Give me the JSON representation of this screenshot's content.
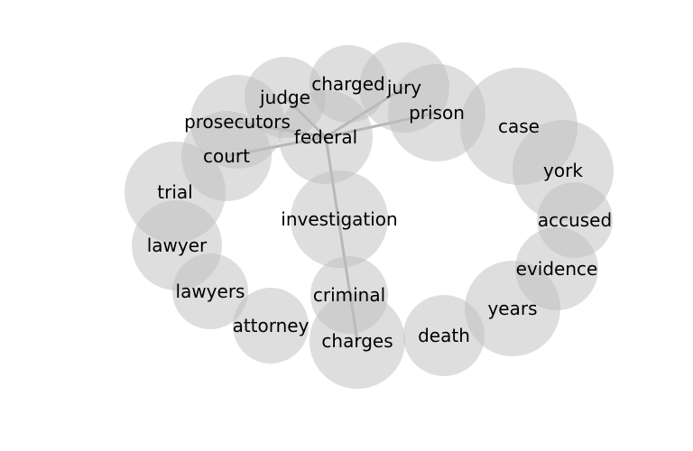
{
  "diagram": {
    "type": "word-association-network",
    "center": "federal",
    "nodes": [
      "federal",
      "judge",
      "charged",
      "jury",
      "prison",
      "case",
      "york",
      "accused",
      "evidence",
      "years",
      "death",
      "charges",
      "criminal",
      "attorney",
      "lawyers",
      "lawyer",
      "trial",
      "court",
      "prosecutors",
      "investigation"
    ],
    "edges": [
      [
        "federal",
        "judge"
      ],
      [
        "federal",
        "jury"
      ],
      [
        "federal",
        "prison"
      ],
      [
        "federal",
        "prosecutors"
      ],
      [
        "federal",
        "court"
      ],
      [
        "federal",
        "charges"
      ]
    ]
  }
}
